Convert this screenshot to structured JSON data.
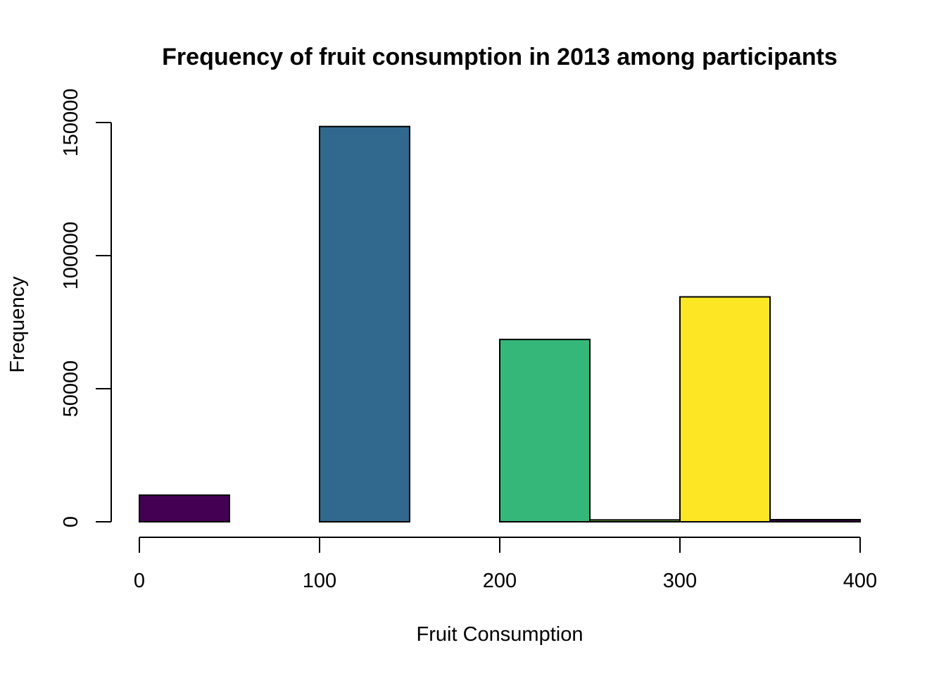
{
  "chart_data": {
    "type": "histogram",
    "title": "Frequency of fruit consumption in 2013 among participants",
    "xlabel": "Fruit Consumption",
    "ylabel": "Frequency",
    "xlim": [
      0,
      400
    ],
    "ylim": [
      0,
      160000
    ],
    "x_ticks": [
      0,
      100,
      200,
      300,
      400
    ],
    "x_tick_labels": [
      "0",
      "100",
      "200",
      "300",
      "400"
    ],
    "y_ticks": [
      0,
      50000,
      100000,
      150000
    ],
    "y_tick_labels": [
      "0",
      "50000",
      "100000",
      "150000"
    ],
    "grid": false,
    "bins": [
      {
        "start": 0,
        "end": 50,
        "value": 10000,
        "color": "#440154"
      },
      {
        "start": 50,
        "end": 100,
        "value": 0,
        "color": "#46337E"
      },
      {
        "start": 100,
        "end": 150,
        "value": 148500,
        "color": "#31688E"
      },
      {
        "start": 150,
        "end": 200,
        "value": 0,
        "color": "#21908C"
      },
      {
        "start": 200,
        "end": 250,
        "value": 68500,
        "color": "#35B779"
      },
      {
        "start": 250,
        "end": 300,
        "value": 700,
        "color": "#8FD744"
      },
      {
        "start": 300,
        "end": 350,
        "value": 84500,
        "color": "#FDE725"
      },
      {
        "start": 350,
        "end": 400,
        "value": 800,
        "color": "#440154"
      }
    ]
  }
}
